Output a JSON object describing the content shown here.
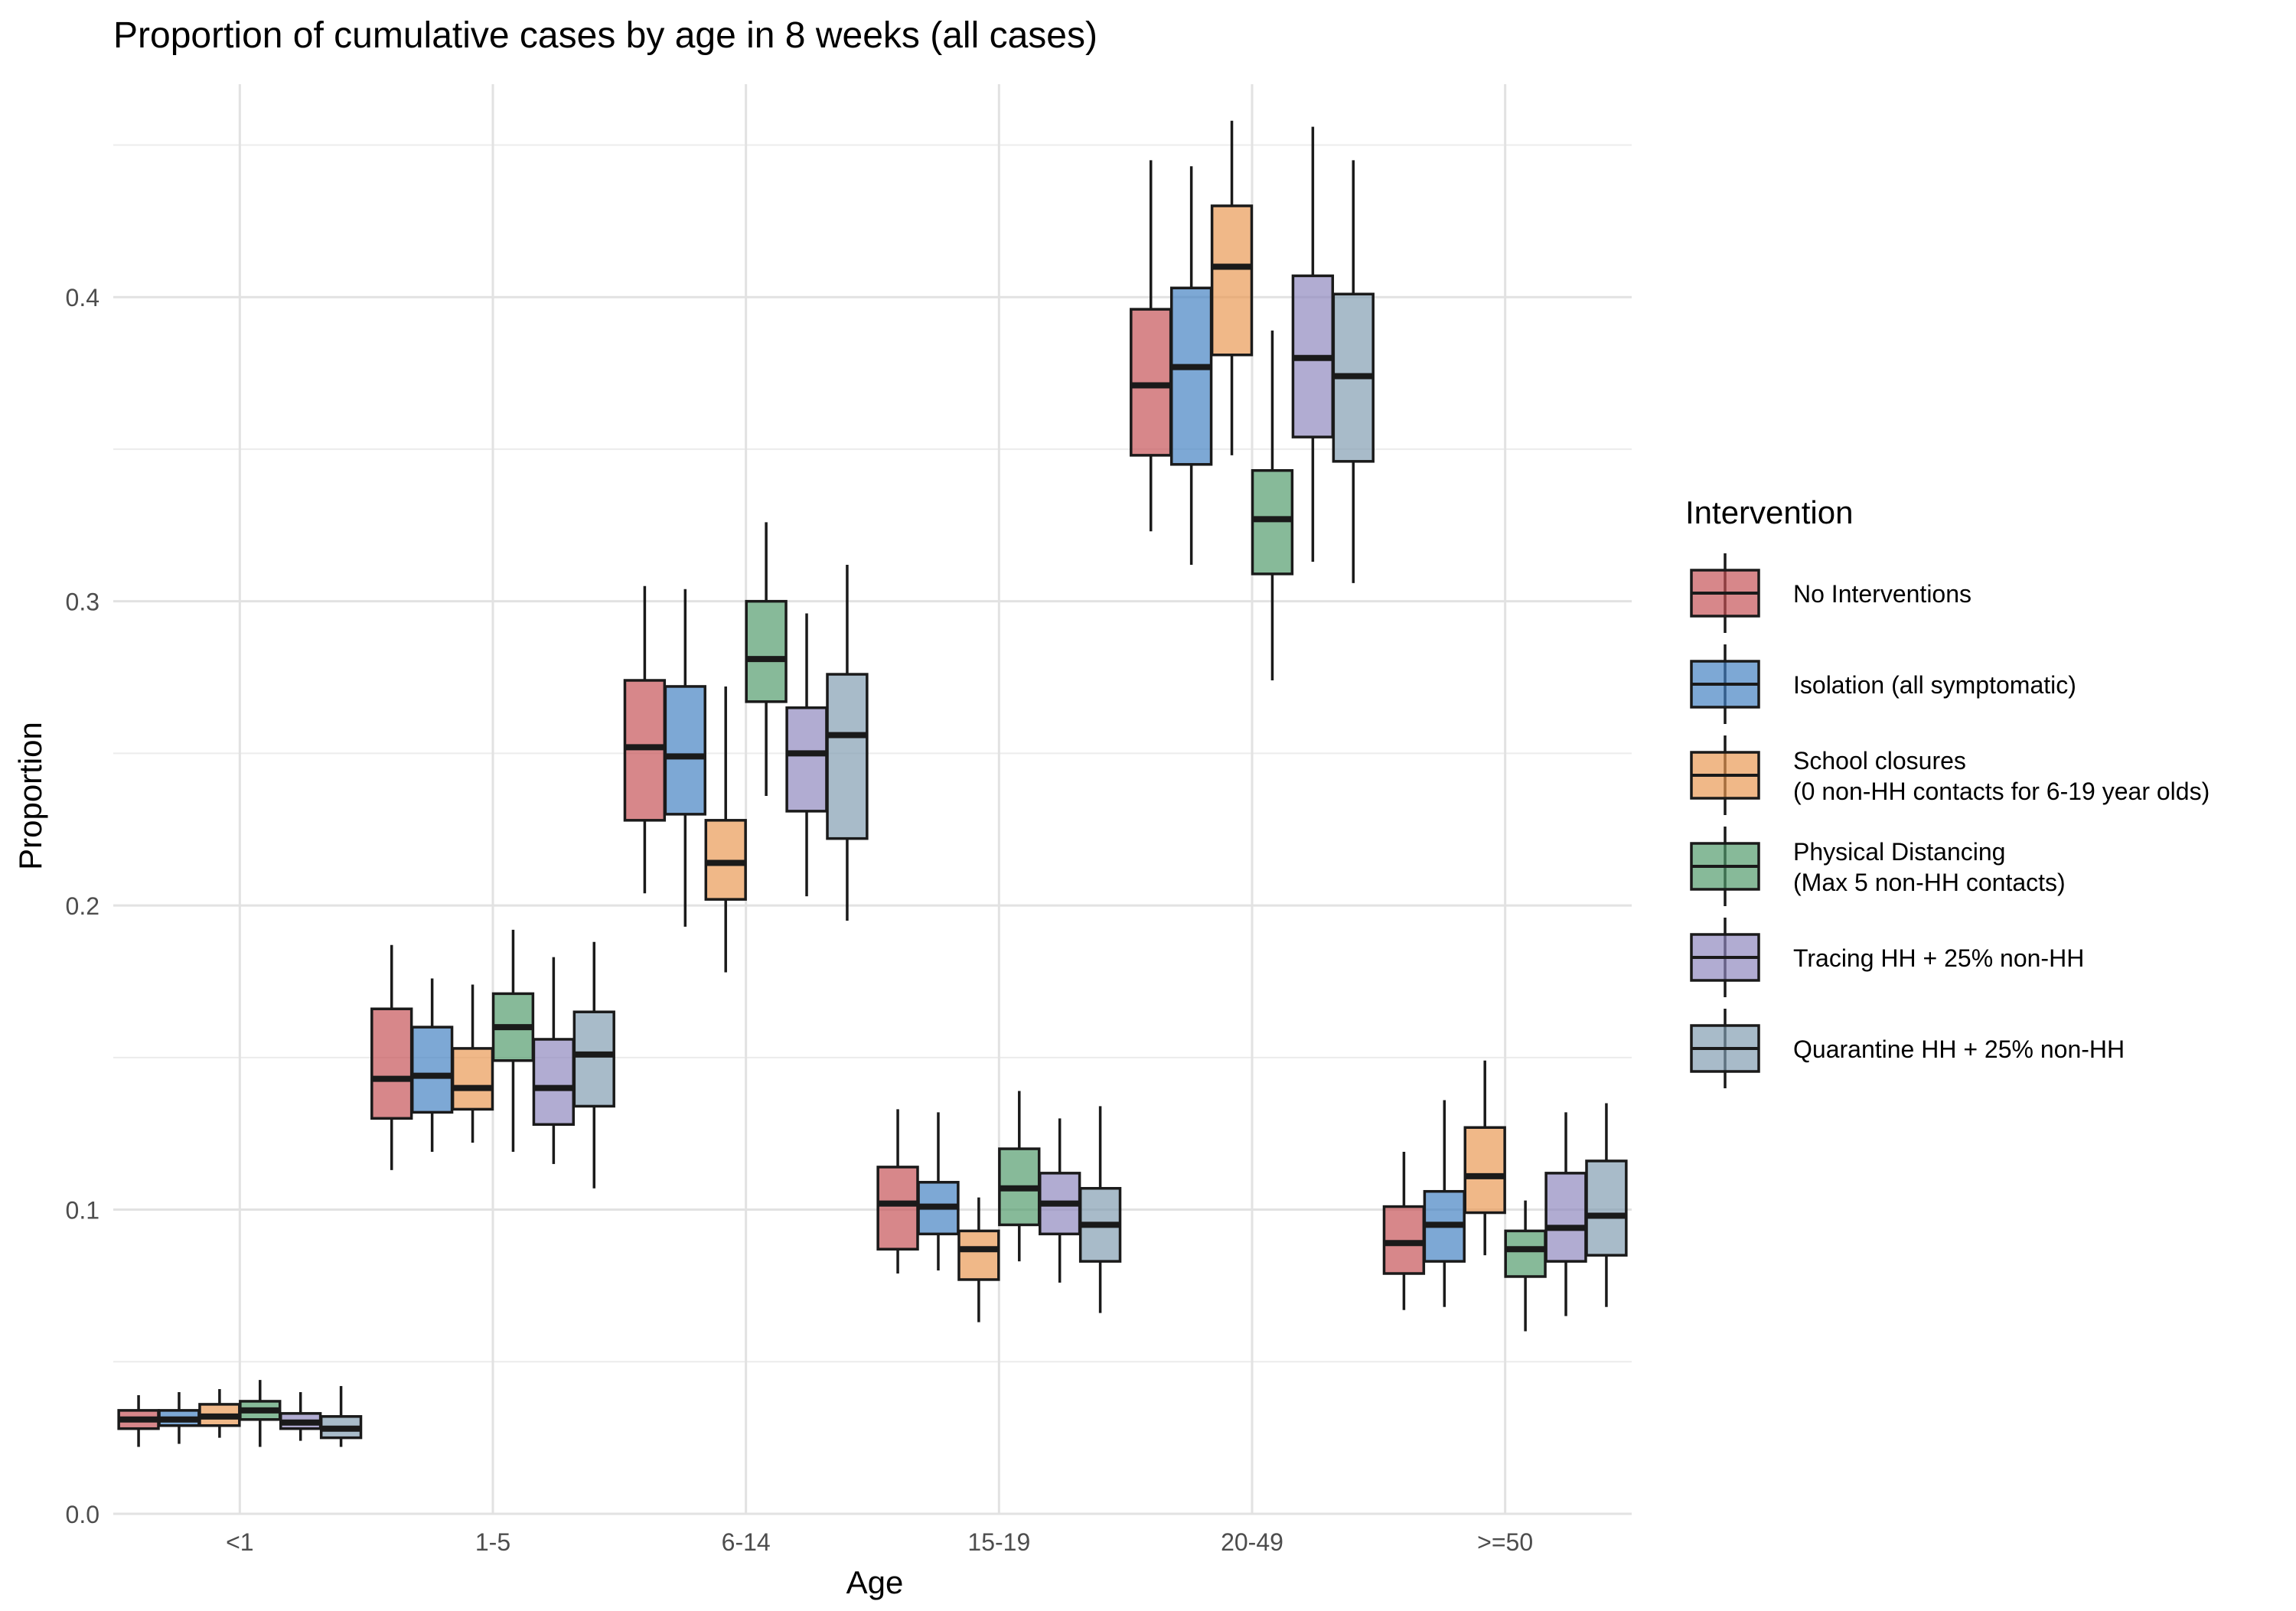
{
  "chart_data": {
    "type": "boxplot",
    "title": "Proportion of cumulative cases by age in 8 weeks (all cases)",
    "xlabel": "Age",
    "ylabel": "Proportion",
    "ylim": [
      0,
      0.47
    ],
    "yticks": [
      0.0,
      0.1,
      0.2,
      0.3,
      0.4
    ],
    "ytick_labels": [
      "0.0",
      "0.1",
      "0.2",
      "0.3",
      "0.4"
    ],
    "grid": true,
    "legend_position": "right",
    "legend_title": "Intervention",
    "categories": [
      "<1",
      "1-5",
      "6-14",
      "15-19",
      "20-49",
      ">=50"
    ],
    "series": [
      {
        "name": [
          "No Interventions"
        ],
        "color": "#c44e52",
        "boxes": [
          {
            "min": 0.022,
            "q1": 0.028,
            "median": 0.031,
            "q3": 0.034,
            "max": 0.039
          },
          {
            "min": 0.113,
            "q1": 0.13,
            "median": 0.143,
            "q3": 0.166,
            "max": 0.187
          },
          {
            "min": 0.204,
            "q1": 0.228,
            "median": 0.252,
            "q3": 0.274,
            "max": 0.305
          },
          {
            "min": 0.079,
            "q1": 0.087,
            "median": 0.102,
            "q3": 0.114,
            "max": 0.133
          },
          {
            "min": 0.323,
            "q1": 0.348,
            "median": 0.371,
            "q3": 0.396,
            "max": 0.445
          },
          {
            "min": 0.067,
            "q1": 0.079,
            "median": 0.089,
            "q3": 0.101,
            "max": 0.119
          }
        ]
      },
      {
        "name": [
          "Isolation (all symptomatic)"
        ],
        "color": "#3f7fc1",
        "boxes": [
          {
            "min": 0.023,
            "q1": 0.029,
            "median": 0.031,
            "q3": 0.034,
            "max": 0.04
          },
          {
            "min": 0.119,
            "q1": 0.132,
            "median": 0.144,
            "q3": 0.16,
            "max": 0.176
          },
          {
            "min": 0.193,
            "q1": 0.23,
            "median": 0.249,
            "q3": 0.272,
            "max": 0.304
          },
          {
            "min": 0.08,
            "q1": 0.092,
            "median": 0.101,
            "q3": 0.109,
            "max": 0.132
          },
          {
            "min": 0.312,
            "q1": 0.345,
            "median": 0.377,
            "q3": 0.403,
            "max": 0.443
          },
          {
            "min": 0.068,
            "q1": 0.083,
            "median": 0.095,
            "q3": 0.106,
            "max": 0.136
          }
        ]
      },
      {
        "name": [
          "School closures",
          "(0 non-HH contacts for 6-19 year olds)"
        ],
        "color": "#e9974f",
        "boxes": [
          {
            "min": 0.025,
            "q1": 0.029,
            "median": 0.032,
            "q3": 0.036,
            "max": 0.041
          },
          {
            "min": 0.122,
            "q1": 0.133,
            "median": 0.14,
            "q3": 0.153,
            "max": 0.174
          },
          {
            "min": 0.178,
            "q1": 0.202,
            "median": 0.214,
            "q3": 0.228,
            "max": 0.272
          },
          {
            "min": 0.063,
            "q1": 0.077,
            "median": 0.087,
            "q3": 0.093,
            "max": 0.104
          },
          {
            "min": 0.348,
            "q1": 0.381,
            "median": 0.41,
            "q3": 0.43,
            "max": 0.458
          },
          {
            "min": 0.085,
            "q1": 0.099,
            "median": 0.111,
            "q3": 0.127,
            "max": 0.149
          }
        ]
      },
      {
        "name": [
          "Physical Distancing",
          "(Max 5 non-HH contacts)"
        ],
        "color": "#4e9a68",
        "boxes": [
          {
            "min": 0.022,
            "q1": 0.031,
            "median": 0.034,
            "q3": 0.037,
            "max": 0.044
          },
          {
            "min": 0.119,
            "q1": 0.149,
            "median": 0.16,
            "q3": 0.171,
            "max": 0.192
          },
          {
            "min": 0.236,
            "q1": 0.267,
            "median": 0.281,
            "q3": 0.3,
            "max": 0.326
          },
          {
            "min": 0.083,
            "q1": 0.095,
            "median": 0.107,
            "q3": 0.12,
            "max": 0.139
          },
          {
            "min": 0.274,
            "q1": 0.309,
            "median": 0.327,
            "q3": 0.343,
            "max": 0.389
          },
          {
            "min": 0.06,
            "q1": 0.078,
            "median": 0.087,
            "q3": 0.093,
            "max": 0.103
          }
        ]
      },
      {
        "name": [
          "Tracing HH + 25% non-HH"
        ],
        "color": "#8c84bd",
        "boxes": [
          {
            "min": 0.024,
            "q1": 0.028,
            "median": 0.03,
            "q3": 0.033,
            "max": 0.04
          },
          {
            "min": 0.115,
            "q1": 0.128,
            "median": 0.14,
            "q3": 0.156,
            "max": 0.183
          },
          {
            "min": 0.203,
            "q1": 0.231,
            "median": 0.25,
            "q3": 0.265,
            "max": 0.296
          },
          {
            "min": 0.076,
            "q1": 0.092,
            "median": 0.102,
            "q3": 0.112,
            "max": 0.13
          },
          {
            "min": 0.313,
            "q1": 0.354,
            "median": 0.38,
            "q3": 0.407,
            "max": 0.456
          },
          {
            "min": 0.065,
            "q1": 0.083,
            "median": 0.094,
            "q3": 0.112,
            "max": 0.132
          }
        ]
      },
      {
        "name": [
          "Quarantine HH + 25% non-HH"
        ],
        "color": "#7f9bb0",
        "boxes": [
          {
            "min": 0.022,
            "q1": 0.025,
            "median": 0.028,
            "q3": 0.032,
            "max": 0.042
          },
          {
            "min": 0.107,
            "q1": 0.134,
            "median": 0.151,
            "q3": 0.165,
            "max": 0.188
          },
          {
            "min": 0.195,
            "q1": 0.222,
            "median": 0.256,
            "q3": 0.276,
            "max": 0.312
          },
          {
            "min": 0.066,
            "q1": 0.083,
            "median": 0.095,
            "q3": 0.107,
            "max": 0.134
          },
          {
            "min": 0.306,
            "q1": 0.346,
            "median": 0.374,
            "q3": 0.401,
            "max": 0.445
          },
          {
            "min": 0.068,
            "q1": 0.085,
            "median": 0.098,
            "q3": 0.116,
            "max": 0.135
          }
        ]
      }
    ]
  }
}
